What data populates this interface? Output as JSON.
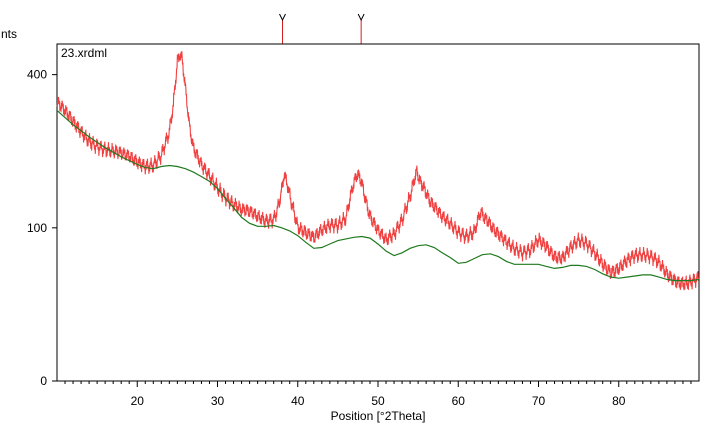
{
  "chart_data": {
    "type": "line",
    "title": "",
    "file_label": "23.xrdml",
    "xlabel": "Position [°2Theta]",
    "ylabel_visible": "nts",
    "xlim": [
      10,
      90
    ],
    "ylim": [
      0,
      484
    ],
    "y_scale": "sqrt",
    "x_ticks": [
      20,
      30,
      40,
      50,
      60,
      70,
      80
    ],
    "y_ticks": [
      0,
      100,
      400
    ],
    "grid": false,
    "legend": "none",
    "peak_markers": [
      38.1,
      47.9
    ],
    "colors": {
      "pattern": "#f04040",
      "background": "#1f7a1f",
      "marker": "#d62020"
    },
    "series": [
      {
        "role": "measured",
        "x": [
          10,
          12,
          14,
          16,
          18,
          20,
          21,
          22,
          23,
          24,
          24.5,
          25,
          25.3,
          25.6,
          26,
          26.5,
          27,
          28,
          29,
          30,
          31,
          32,
          33,
          34,
          35,
          36,
          37,
          37.5,
          38,
          38.3,
          38.7,
          39.2,
          40,
          41,
          42,
          43,
          44,
          45,
          46,
          46.8,
          47.4,
          47.9,
          48.4,
          49,
          50,
          51,
          52,
          53,
          54,
          54.8,
          55.5,
          56.5,
          58,
          59,
          60,
          61,
          62,
          62.8,
          63.5,
          64.5,
          66,
          67,
          68,
          69,
          70,
          71,
          72,
          73,
          74,
          75,
          76,
          77,
          78,
          79,
          80,
          81,
          82,
          83,
          84,
          85,
          86,
          87,
          88,
          89,
          90
        ],
        "y": [
          322,
          286,
          254,
          230,
          214,
          202,
          200,
          206,
          225,
          268,
          325,
          430,
          470,
          430,
          355,
          268,
          223,
          196,
          182,
          166,
          150,
          136,
          124,
          118,
          110,
          106,
          112,
          130,
          160,
          175,
          160,
          130,
          104,
          93,
          84,
          92,
          100,
          104,
          118,
          152,
          188,
          178,
          150,
          115,
          93,
          80,
          88,
          110,
          150,
          180,
          172,
          140,
          112,
          100,
          90,
          88,
          98,
          116,
          118,
          100,
          80,
          70,
          66,
          72,
          88,
          82,
          70,
          66,
          74,
          80,
          76,
          68,
          60,
          54,
          58,
          64,
          66,
          64,
          62,
          58,
          50,
          46,
          44,
          44,
          45
        ]
      },
      {
        "role": "background",
        "x": [
          10,
          12,
          14,
          16,
          18,
          20,
          21,
          22,
          23,
          24,
          25,
          26,
          27,
          28,
          29,
          30,
          31,
          32,
          33,
          34,
          35,
          36,
          37,
          38,
          39,
          40,
          41,
          42,
          43,
          44,
          45,
          46,
          47,
          48,
          49,
          50,
          51,
          52,
          53,
          54,
          55,
          56,
          57,
          58,
          59,
          60,
          61,
          62,
          63,
          64,
          65,
          66,
          67,
          68,
          69,
          70,
          71,
          72,
          73,
          74,
          75,
          76,
          77,
          78,
          79,
          80,
          81,
          82,
          83,
          84,
          85,
          86,
          87,
          88,
          89,
          90
        ],
        "y": [
          312,
          280,
          254,
          232,
          214,
          200,
          194,
          192,
          196,
          198,
          196,
          192,
          186,
          178,
          170,
          158,
          142,
          128,
          114,
          106,
          102,
          102,
          103,
          100,
          96,
          90,
          82,
          75,
          76,
          80,
          84,
          86,
          88,
          89,
          87,
          80,
          72,
          67,
          70,
          75,
          78,
          79,
          76,
          70,
          65,
          59,
          60,
          64,
          68,
          69,
          66,
          61,
          58,
          58,
          58,
          58,
          56,
          54,
          55,
          57,
          57,
          56,
          53,
          49,
          46,
          45,
          46,
          47,
          48,
          48,
          46,
          44,
          43,
          43,
          43,
          44
        ]
      }
    ]
  }
}
